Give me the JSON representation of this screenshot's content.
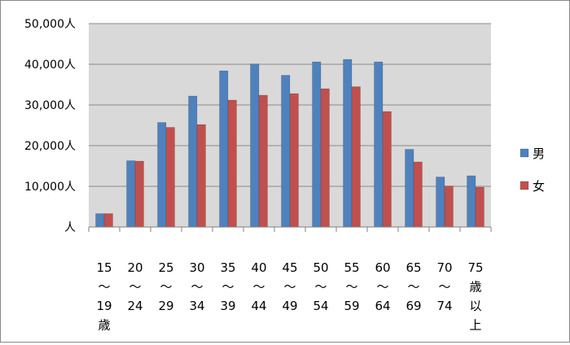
{
  "chart_data": {
    "type": "bar",
    "categories": [
      [
        "15",
        "〜",
        "19",
        "歳"
      ],
      [
        "20",
        "〜",
        "24"
      ],
      [
        "25",
        "〜",
        "29"
      ],
      [
        "30",
        "〜",
        "34"
      ],
      [
        "35",
        "〜",
        "39"
      ],
      [
        "40",
        "〜",
        "44"
      ],
      [
        "45",
        "〜",
        "49"
      ],
      [
        "50",
        "〜",
        "54"
      ],
      [
        "55",
        "〜",
        "59"
      ],
      [
        "60",
        "〜",
        "64"
      ],
      [
        "65",
        "〜",
        "69"
      ],
      [
        "70",
        "〜",
        "74"
      ],
      [
        "75",
        "歳",
        "以",
        "上"
      ]
    ],
    "series": [
      {
        "name": "男",
        "color": "#4f81bd",
        "values": [
          3300,
          16300,
          25700,
          32200,
          38400,
          40100,
          37300,
          40600,
          41200,
          40600,
          19100,
          12300,
          12600
        ]
      },
      {
        "name": "女",
        "color": "#c0504d",
        "values": [
          3300,
          16200,
          24500,
          25200,
          31200,
          32400,
          32800,
          34000,
          34500,
          28400,
          16000,
          10100,
          9800
        ]
      }
    ],
    "ylim": [
      0,
      50000
    ],
    "yticks": [
      0,
      10000,
      20000,
      30000,
      40000,
      50000
    ],
    "ytick_labels": [
      "人",
      "10,000人",
      "20,000人",
      "30,000人",
      "40,000人",
      "50,000人"
    ],
    "grid": true,
    "plot_background": "#d9d9d9",
    "legend_position": "right"
  }
}
